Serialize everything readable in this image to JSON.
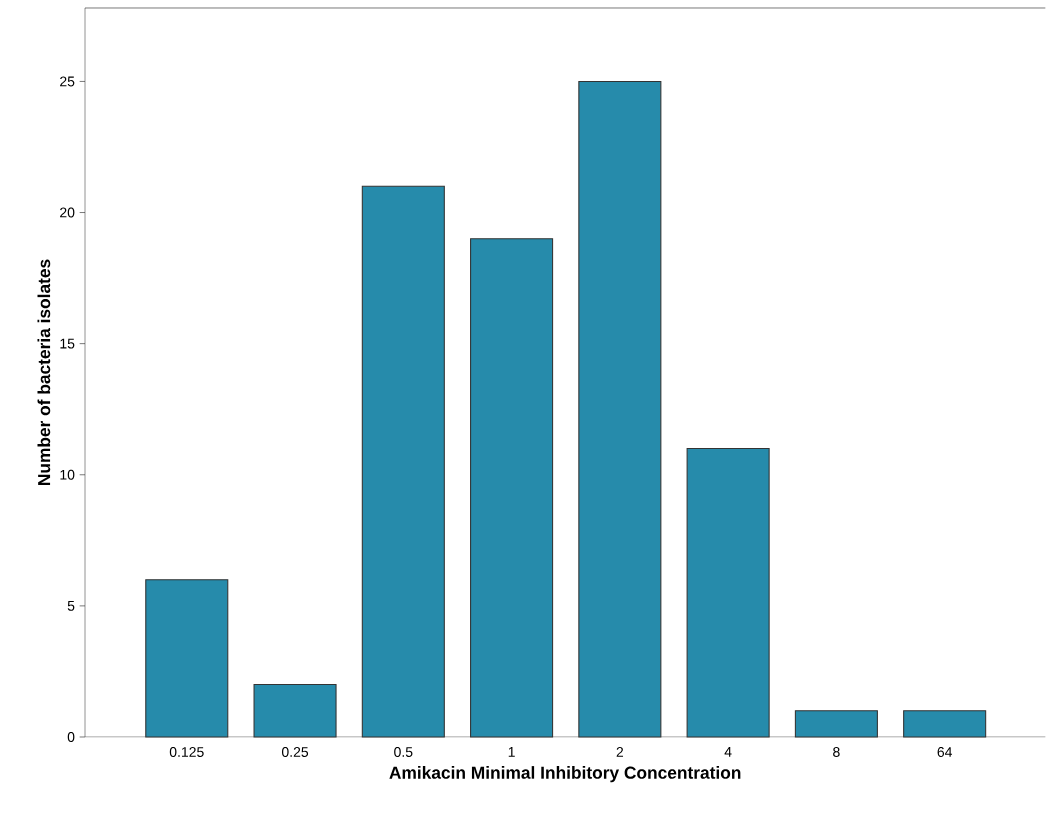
{
  "chart_data": {
    "type": "bar",
    "xlabel": "Amikacin Minimal Inhibitory Concentration",
    "ylabel": "Number of bacteria isolates",
    "categories": [
      "0.125",
      "0.25",
      "0.5",
      "1",
      "2",
      "4",
      "8",
      "64"
    ],
    "values": [
      6,
      2,
      21,
      19,
      25,
      11,
      1,
      1
    ],
    "color": "#268bab",
    "ylim": [
      0,
      27.8
    ],
    "yticks": [
      0,
      5,
      10,
      15,
      20,
      25
    ],
    "grid": false
  }
}
